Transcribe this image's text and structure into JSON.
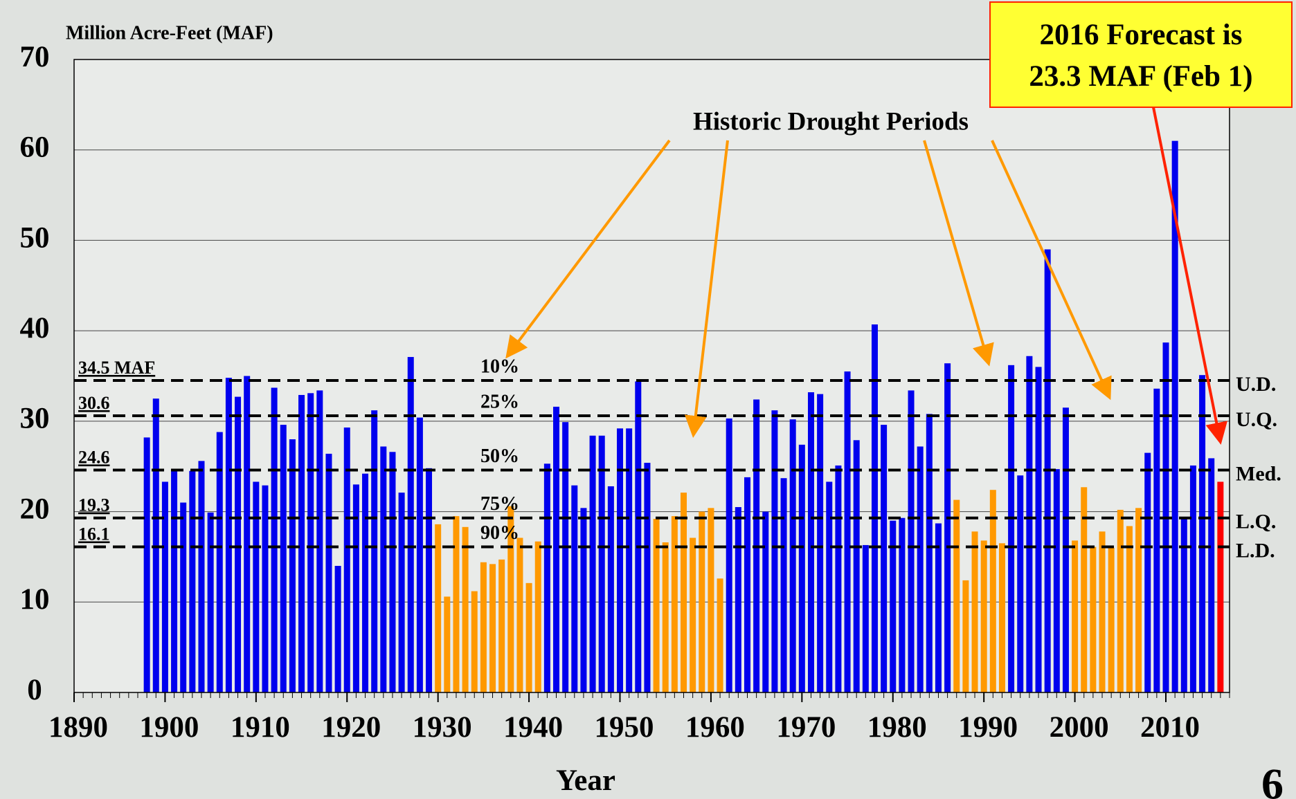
{
  "chart_data": {
    "type": "bar",
    "y_axis_title": "Million Acre-Feet (MAF)",
    "x_axis_title": "Year",
    "page_number": "6",
    "x": [
      1898,
      1899,
      1900,
      1901,
      1902,
      1903,
      1904,
      1905,
      1906,
      1907,
      1908,
      1909,
      1910,
      1911,
      1912,
      1913,
      1914,
      1915,
      1916,
      1917,
      1918,
      1919,
      1920,
      1921,
      1922,
      1923,
      1924,
      1925,
      1926,
      1927,
      1928,
      1929,
      1930,
      1931,
      1932,
      1933,
      1934,
      1935,
      1936,
      1937,
      1938,
      1939,
      1940,
      1941,
      1942,
      1943,
      1944,
      1945,
      1946,
      1947,
      1948,
      1949,
      1950,
      1951,
      1952,
      1953,
      1954,
      1955,
      1956,
      1957,
      1958,
      1959,
      1960,
      1961,
      1962,
      1963,
      1964,
      1965,
      1966,
      1967,
      1968,
      1969,
      1970,
      1971,
      1972,
      1973,
      1974,
      1975,
      1976,
      1977,
      1978,
      1979,
      1980,
      1981,
      1982,
      1983,
      1984,
      1985,
      1986,
      1987,
      1988,
      1989,
      1990,
      1991,
      1992,
      1993,
      1994,
      1995,
      1996,
      1997,
      1998,
      1999,
      2000,
      2001,
      2002,
      2003,
      2004,
      2005,
      2006,
      2007,
      2008,
      2009,
      2010,
      2011,
      2012,
      2013,
      2014,
      2015,
      2016
    ],
    "values": [
      28.2,
      32.5,
      23.3,
      24.7,
      21.0,
      24.5,
      25.6,
      19.9,
      28.8,
      34.8,
      32.7,
      35.0,
      23.3,
      22.9,
      33.7,
      29.6,
      28.0,
      32.9,
      33.1,
      33.4,
      26.4,
      14.0,
      29.3,
      23.0,
      24.2,
      31.2,
      27.2,
      26.6,
      22.1,
      37.1,
      30.4,
      24.8,
      18.6,
      10.6,
      19.5,
      18.3,
      11.2,
      14.4,
      14.2,
      14.7,
      20.6,
      17.1,
      12.1,
      16.7,
      25.3,
      31.6,
      29.9,
      22.9,
      20.4,
      28.4,
      28.4,
      22.8,
      29.2,
      29.2,
      34.4,
      25.4,
      19.2,
      16.6,
      19.5,
      22.1,
      17.1,
      20.0,
      20.4,
      12.6,
      30.3,
      20.5,
      23.8,
      32.4,
      20.0,
      31.2,
      23.7,
      30.2,
      27.4,
      33.2,
      33.0,
      23.3,
      25.1,
      35.5,
      27.9,
      16.3,
      40.7,
      29.6,
      19.0,
      19.3,
      33.4,
      27.2,
      30.8,
      18.7,
      36.4,
      21.3,
      12.4,
      17.8,
      16.8,
      22.4,
      16.5,
      36.2,
      24.0,
      37.2,
      36.0,
      49.0,
      24.7,
      31.5,
      16.8,
      22.7,
      16.1,
      17.8,
      16.0,
      20.2,
      18.4,
      20.4,
      26.5,
      33.6,
      38.7,
      61.0,
      19.4,
      25.1,
      35.1,
      25.9,
      23.3
    ],
    "colors": [
      "#0000ee",
      "#0000ee",
      "#0000ee",
      "#0000ee",
      "#0000ee",
      "#0000ee",
      "#0000ee",
      "#0000ee",
      "#0000ee",
      "#0000ee",
      "#0000ee",
      "#0000ee",
      "#0000ee",
      "#0000ee",
      "#0000ee",
      "#0000ee",
      "#0000ee",
      "#0000ee",
      "#0000ee",
      "#0000ee",
      "#0000ee",
      "#0000ee",
      "#0000ee",
      "#0000ee",
      "#0000ee",
      "#0000ee",
      "#0000ee",
      "#0000ee",
      "#0000ee",
      "#0000ee",
      "#0000ee",
      "#0000ee",
      "#ff9900",
      "#ff9900",
      "#ff9900",
      "#ff9900",
      "#ff9900",
      "#ff9900",
      "#ff9900",
      "#ff9900",
      "#ff9900",
      "#ff9900",
      "#ff9900",
      "#ff9900",
      "#0000ee",
      "#0000ee",
      "#0000ee",
      "#0000ee",
      "#0000ee",
      "#0000ee",
      "#0000ee",
      "#0000ee",
      "#0000ee",
      "#0000ee",
      "#0000ee",
      "#0000ee",
      "#ff9900",
      "#ff9900",
      "#ff9900",
      "#ff9900",
      "#ff9900",
      "#ff9900",
      "#ff9900",
      "#ff9900",
      "#0000ee",
      "#0000ee",
      "#0000ee",
      "#0000ee",
      "#0000ee",
      "#0000ee",
      "#0000ee",
      "#0000ee",
      "#0000ee",
      "#0000ee",
      "#0000ee",
      "#0000ee",
      "#0000ee",
      "#0000ee",
      "#0000ee",
      "#0000ee",
      "#0000ee",
      "#0000ee",
      "#0000ee",
      "#0000ee",
      "#0000ee",
      "#0000ee",
      "#0000ee",
      "#0000ee",
      "#0000ee",
      "#ff9900",
      "#ff9900",
      "#ff9900",
      "#ff9900",
      "#ff9900",
      "#ff9900",
      "#0000ee",
      "#0000ee",
      "#0000ee",
      "#0000ee",
      "#0000ee",
      "#0000ee",
      "#0000ee",
      "#ff9900",
      "#ff9900",
      "#ff9900",
      "#ff9900",
      "#ff9900",
      "#ff9900",
      "#ff9900",
      "#ff9900",
      "#0000ee",
      "#0000ee",
      "#0000ee",
      "#0000ee",
      "#0000ee",
      "#0000ee",
      "#0000ee",
      "#0000ee",
      "#ff0000"
    ],
    "xlim": [
      1890,
      2017
    ],
    "xticks": [
      1890,
      1900,
      1910,
      1920,
      1930,
      1940,
      1950,
      1960,
      1970,
      1980,
      1990,
      2000,
      2010
    ],
    "ylim": [
      0,
      70
    ],
    "yticks": [
      0,
      10,
      20,
      30,
      40,
      50,
      60,
      70
    ],
    "grid": true,
    "reference_lines": [
      {
        "value": 34.5,
        "label": "34.5 MAF",
        "percent": "10%",
        "name": "U.D."
      },
      {
        "value": 30.6,
        "label": "30.6",
        "percent": "25%",
        "name": "U.Q."
      },
      {
        "value": 24.6,
        "label": "24.6",
        "percent": "50%",
        "name": "Med."
      },
      {
        "value": 19.3,
        "label": "19.3",
        "percent": "75%",
        "name": "L.Q."
      },
      {
        "value": 16.1,
        "label": "16.1",
        "percent": "90%",
        "name": "L.D."
      }
    ],
    "annotations": {
      "drought": "Historic Drought Periods",
      "forecast": [
        "2016 Forecast is",
        "23.3 MAF (Feb 1)"
      ]
    }
  }
}
